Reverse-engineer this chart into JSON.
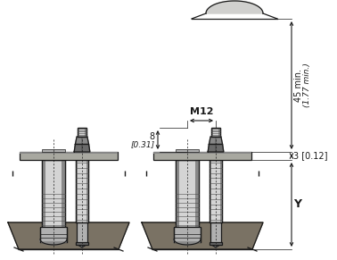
{
  "bg_color": "#ffffff",
  "line_color": "#1a1a1a",
  "figsize": [
    3.78,
    2.91
  ],
  "dpi": 100,
  "annotations": {
    "dim_8": "8",
    "dim_031": "[0.31]",
    "dim_M12": "M12",
    "dim_45": "45 min.",
    "dim_177": "(1.77 min.)",
    "dim_3": "3 [0.12]",
    "dim_Y": "Y"
  },
  "colors": {
    "steel_light": "#d4d4d4",
    "steel_mid": "#b0b0b0",
    "steel_dark": "#888888",
    "steel_darker": "#666666",
    "steel_very_dark": "#444444",
    "nut_body": "#6a6a6a",
    "nut_top": "#888888",
    "ground_fill": "#7a7264",
    "ground_dark": "#5a5248",
    "flange_fill": "#a8a8a0",
    "shaft_fill": "#c0c0c0",
    "shaft_shadow": "#909090",
    "thread_line": "#505050",
    "base_plate": "#e0e0de",
    "base_outline": "#333333"
  }
}
